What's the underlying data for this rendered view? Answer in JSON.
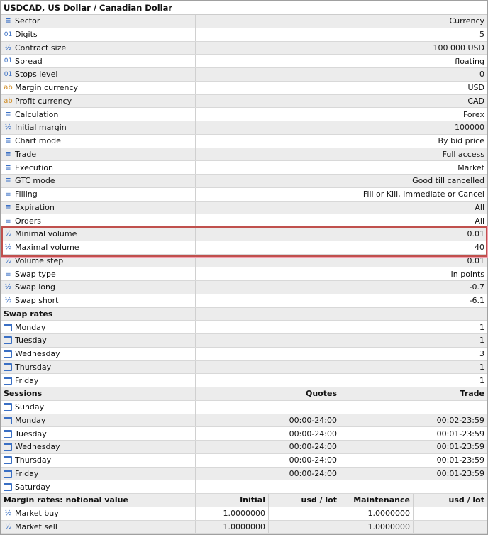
{
  "title": "USDCAD, US Dollar / Canadian Dollar",
  "colors": {
    "highlight": "#c0504d",
    "icon_blue": "#3a6fc4",
    "icon_orange": "#d08a20"
  },
  "properties": [
    {
      "icon": "list-icon",
      "label": "Sector",
      "value": "Currency"
    },
    {
      "icon": "integer-icon",
      "label": "Digits",
      "value": "5"
    },
    {
      "icon": "fraction-icon",
      "label": "Contract size",
      "value": "100 000 USD"
    },
    {
      "icon": "integer-icon",
      "label": "Spread",
      "value": "floating"
    },
    {
      "icon": "integer-icon",
      "label": "Stops level",
      "value": "0"
    },
    {
      "icon": "text-icon",
      "label": "Margin currency",
      "value": "USD"
    },
    {
      "icon": "text-icon",
      "label": "Profit currency",
      "value": "CAD"
    },
    {
      "icon": "list-icon",
      "label": "Calculation",
      "value": "Forex"
    },
    {
      "icon": "fraction-icon",
      "label": "Initial margin",
      "value": "100000"
    },
    {
      "icon": "list-icon",
      "label": "Chart mode",
      "value": "By bid price"
    },
    {
      "icon": "list-icon",
      "label": "Trade",
      "value": "Full access"
    },
    {
      "icon": "list-icon",
      "label": "Execution",
      "value": "Market"
    },
    {
      "icon": "list-icon",
      "label": "GTC mode",
      "value": "Good till cancelled"
    },
    {
      "icon": "list-icon",
      "label": "Filling",
      "value": "Fill or Kill, Immediate or Cancel"
    },
    {
      "icon": "list-icon",
      "label": "Expiration",
      "value": "All"
    },
    {
      "icon": "list-icon",
      "label": "Orders",
      "value": "All"
    },
    {
      "icon": "fraction-icon",
      "label": "Minimal volume",
      "value": "0.01"
    },
    {
      "icon": "fraction-icon",
      "label": "Maximal volume",
      "value": "40"
    },
    {
      "icon": "fraction-icon",
      "label": "Volume step",
      "value": "0.01"
    },
    {
      "icon": "list-icon",
      "label": "Swap type",
      "value": "In points"
    },
    {
      "icon": "fraction-icon",
      "label": "Swap long",
      "value": "-0.7"
    },
    {
      "icon": "fraction-icon",
      "label": "Swap short",
      "value": "-6.1"
    }
  ],
  "swap_rates": {
    "header": "Swap rates",
    "days": [
      {
        "label": "Monday",
        "value": "1"
      },
      {
        "label": "Tuesday",
        "value": "1"
      },
      {
        "label": "Wednesday",
        "value": "3"
      },
      {
        "label": "Thursday",
        "value": "1"
      },
      {
        "label": "Friday",
        "value": "1"
      }
    ]
  },
  "sessions": {
    "header": "Sessions",
    "quotes_header": "Quotes",
    "trade_header": "Trade",
    "days": [
      {
        "label": "Sunday",
        "quotes": "",
        "trade": ""
      },
      {
        "label": "Monday",
        "quotes": "00:00-24:00",
        "trade": "00:02-23:59"
      },
      {
        "label": "Tuesday",
        "quotes": "00:00-24:00",
        "trade": "00:01-23:59"
      },
      {
        "label": "Wednesday",
        "quotes": "00:00-24:00",
        "trade": "00:01-23:59"
      },
      {
        "label": "Thursday",
        "quotes": "00:00-24:00",
        "trade": "00:01-23:59"
      },
      {
        "label": "Friday",
        "quotes": "00:00-24:00",
        "trade": "00:01-23:59"
      },
      {
        "label": "Saturday",
        "quotes": "",
        "trade": ""
      }
    ]
  },
  "margin_rates": {
    "header": "Margin rates: notional value",
    "initial_header": "Initial",
    "unit1_header": "usd / lot",
    "maintenance_header": "Maintenance",
    "unit2_header": "usd / lot",
    "rows": [
      {
        "label": "Market buy",
        "initial": "1.0000000",
        "unit1": "",
        "maintenance": "1.0000000",
        "unit2": ""
      },
      {
        "label": "Market sell",
        "initial": "1.0000000",
        "unit1": "",
        "maintenance": "1.0000000",
        "unit2": ""
      }
    ]
  }
}
